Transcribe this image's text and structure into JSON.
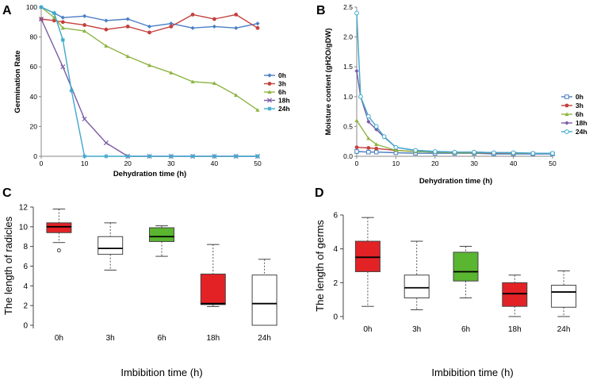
{
  "colors": {
    "0h": "#4a7ec4",
    "3h": "#c4413e",
    "6h": "#8db543",
    "18h": "#7b5ca6",
    "24h": "#3fa8cc",
    "box_red": "#e32226",
    "box_white": "#ffffff",
    "box_green": "#5ab531"
  },
  "chart_data": [
    {
      "panel": "A",
      "type": "line",
      "xlabel": "Dehydration time (h)",
      "ylabel": "Germination Rate",
      "xlim": [
        0,
        50
      ],
      "ylim": [
        0,
        100
      ],
      "xticks": [
        0,
        10,
        20,
        30,
        40,
        50
      ],
      "yticks": [
        0,
        20,
        40,
        60,
        80,
        100
      ],
      "legend_position": "right",
      "series": [
        {
          "name": "0h",
          "marker": "diamond",
          "x": [
            0,
            3,
            5,
            10,
            15,
            20,
            25,
            30,
            35,
            40,
            45,
            50
          ],
          "y": [
            100,
            96,
            93,
            94,
            91,
            92,
            87,
            89,
            86,
            87,
            86,
            89
          ]
        },
        {
          "name": "3h",
          "marker": "circle",
          "x": [
            0,
            3,
            5,
            10,
            15,
            20,
            25,
            30,
            35,
            40,
            45,
            50
          ],
          "y": [
            92,
            91,
            90,
            88,
            85,
            87,
            83,
            87,
            95,
            92,
            95,
            86
          ]
        },
        {
          "name": "6h",
          "marker": "triangle",
          "x": [
            0,
            3,
            5,
            10,
            15,
            20,
            25,
            30,
            35,
            40,
            45,
            50
          ],
          "y": [
            100,
            93,
            86,
            84,
            74,
            67,
            61,
            56,
            50,
            49,
            41,
            31
          ]
        },
        {
          "name": "18h",
          "marker": "x",
          "x": [
            0,
            5,
            10,
            15,
            20,
            25,
            30,
            35,
            40,
            45,
            50
          ],
          "y": [
            92,
            60,
            25,
            9,
            0,
            0,
            0,
            0,
            0,
            0,
            0
          ]
        },
        {
          "name": "24h",
          "marker": "star",
          "x": [
            0,
            3,
            5,
            7,
            10,
            15,
            20,
            25,
            30,
            35,
            40,
            45,
            50
          ],
          "y": [
            100,
            96,
            78,
            44,
            0,
            0,
            0,
            0,
            0,
            0,
            0,
            0,
            0
          ]
        }
      ]
    },
    {
      "panel": "B",
      "type": "line",
      "xlabel": "Dehydration time (h)",
      "ylabel": "Moisture content (gH2O/gDW)",
      "xlim": [
        0,
        50
      ],
      "ylim": [
        0,
        2.5
      ],
      "xticks": [
        0,
        10,
        20,
        30,
        40,
        50
      ],
      "yticks": [
        0,
        0.5,
        1.0,
        1.5,
        2.0,
        2.5
      ],
      "ytick_labels": [
        "0.0",
        "0.5",
        "1.0",
        "1.5",
        "2.0",
        "2.5"
      ],
      "legend_position": "right",
      "series": [
        {
          "name": "0h",
          "marker": "square-open",
          "x": [
            0,
            3,
            5,
            10,
            15,
            20,
            25,
            30,
            35,
            40,
            45,
            50
          ],
          "y": [
            0.08,
            0.07,
            0.07,
            0.06,
            0.05,
            0.05,
            0.05,
            0.05,
            0.04,
            0.04,
            0.04,
            0.04
          ]
        },
        {
          "name": "3h",
          "marker": "circle",
          "x": [
            0,
            3,
            5,
            10,
            15,
            20,
            25,
            30,
            35,
            40,
            45,
            50
          ],
          "y": [
            0.15,
            0.14,
            0.13,
            0.1,
            0.08,
            0.07,
            0.06,
            0.06,
            0.05,
            0.05,
            0.05,
            0.05
          ]
        },
        {
          "name": "6h",
          "marker": "triangle",
          "x": [
            0,
            3,
            5,
            10,
            15,
            20,
            25,
            30,
            35,
            40,
            45,
            50
          ],
          "y": [
            0.6,
            0.3,
            0.2,
            0.1,
            0.08,
            0.07,
            0.06,
            0.06,
            0.06,
            0.05,
            0.05,
            0.05
          ]
        },
        {
          "name": "18h",
          "marker": "diamond",
          "x": [
            0,
            1,
            3,
            5,
            7,
            10,
            15,
            20,
            25,
            30,
            35,
            40,
            45,
            50
          ],
          "y": [
            1.43,
            1.0,
            0.58,
            0.45,
            0.32,
            0.15,
            0.1,
            0.08,
            0.07,
            0.07,
            0.06,
            0.06,
            0.05,
            0.05
          ]
        },
        {
          "name": "24h",
          "marker": "circle-open",
          "x": [
            0,
            1,
            3,
            5,
            7,
            10,
            15,
            20,
            25,
            30,
            35,
            40,
            45,
            50
          ],
          "y": [
            2.4,
            1.0,
            0.67,
            0.5,
            0.33,
            0.15,
            0.1,
            0.08,
            0.07,
            0.07,
            0.06,
            0.06,
            0.05,
            0.05
          ]
        }
      ]
    },
    {
      "panel": "C",
      "type": "boxplot",
      "xlabel": "Imbibition time (h)",
      "ylabel": "The length of radicles",
      "ylim": [
        0,
        12
      ],
      "yticks": [
        0,
        2,
        4,
        6,
        8,
        10,
        12
      ],
      "categories": [
        "0h",
        "3h",
        "6h",
        "18h",
        "24h"
      ],
      "boxes": [
        {
          "category": "0h",
          "color": "box_red",
          "whisker_low": 8.4,
          "q1": 9.4,
          "median": 10.0,
          "q3": 10.4,
          "whisker_high": 11.8,
          "outliers": [
            7.6
          ]
        },
        {
          "category": "3h",
          "color": "box_white",
          "whisker_low": 5.6,
          "q1": 7.2,
          "median": 7.8,
          "q3": 9.0,
          "whisker_high": 10.4,
          "outliers": []
        },
        {
          "category": "6h",
          "color": "box_green",
          "whisker_low": 7.0,
          "q1": 8.5,
          "median": 9.0,
          "q3": 9.9,
          "whisker_high": 10.1,
          "outliers": []
        },
        {
          "category": "18h",
          "color": "box_red",
          "whisker_low": 1.9,
          "q1": 2.1,
          "median": 2.2,
          "q3": 5.2,
          "whisker_high": 8.2,
          "outliers": []
        },
        {
          "category": "24h",
          "color": "box_white",
          "whisker_low": 0.0,
          "q1": 0.0,
          "median": 2.2,
          "q3": 5.1,
          "whisker_high": 6.7,
          "outliers": []
        }
      ]
    },
    {
      "panel": "D",
      "type": "boxplot",
      "xlabel": "Imbibition time (h)",
      "ylabel": "The length of germs",
      "ylim": [
        0,
        6
      ],
      "yticks": [
        0,
        2,
        4,
        6
      ],
      "categories": [
        "0h",
        "3h",
        "6h",
        "18h",
        "24h"
      ],
      "boxes": [
        {
          "category": "0h",
          "color": "box_red",
          "whisker_low": 0.6,
          "q1": 2.65,
          "median": 3.5,
          "q3": 4.45,
          "whisker_high": 5.85,
          "outliers": []
        },
        {
          "category": "3h",
          "color": "box_white",
          "whisker_low": 0.4,
          "q1": 1.1,
          "median": 1.7,
          "q3": 2.45,
          "whisker_high": 4.45,
          "outliers": []
        },
        {
          "category": "6h",
          "color": "box_green",
          "whisker_low": 1.1,
          "q1": 2.1,
          "median": 2.65,
          "q3": 3.8,
          "whisker_high": 4.15,
          "outliers": []
        },
        {
          "category": "18h",
          "color": "box_red",
          "whisker_low": 0.0,
          "q1": 0.6,
          "median": 1.35,
          "q3": 2.0,
          "whisker_high": 2.45,
          "outliers": []
        },
        {
          "category": "24h",
          "color": "box_white",
          "whisker_low": 0.0,
          "q1": 0.55,
          "median": 1.45,
          "q3": 1.85,
          "whisker_high": 2.7,
          "outliers": []
        }
      ]
    }
  ]
}
